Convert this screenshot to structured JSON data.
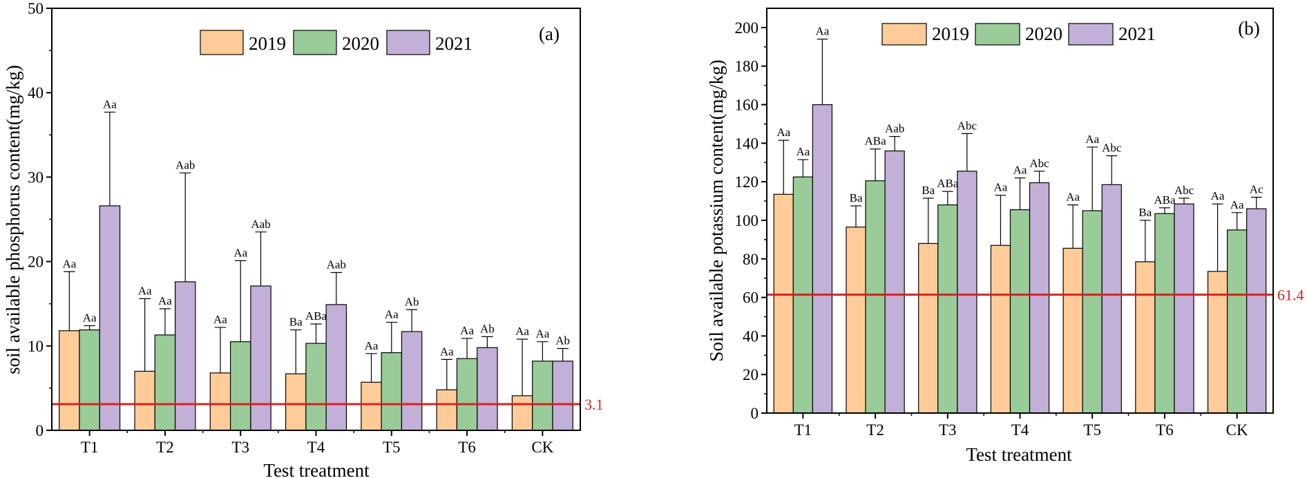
{
  "colors": {
    "series": [
      "#FFCC99",
      "#99CC99",
      "#C2B0D8"
    ],
    "reference_line": "#D92020",
    "axis": "#000000"
  },
  "chart_data": [
    {
      "type": "bar",
      "panel_label": "(a)",
      "title": "",
      "xlabel": "Test treatment",
      "ylabel": "soil available phosphorus content(mg/kg)",
      "categories": [
        "T1",
        "T2",
        "T3",
        "T4",
        "T5",
        "T6",
        "CK"
      ],
      "ylim": [
        0,
        50
      ],
      "yticks": [
        0,
        10,
        20,
        30,
        40,
        50
      ],
      "legend_position": "top-center",
      "series": [
        {
          "name": "2019",
          "values": [
            11.8,
            7.0,
            6.8,
            6.7,
            5.7,
            4.8,
            4.1
          ],
          "errors": [
            7.0,
            8.6,
            5.4,
            5.2,
            3.4,
            3.6,
            6.7
          ],
          "labels": [
            "Aa",
            "Aa",
            "Aa",
            "Ba",
            "Aa",
            "Aa",
            "Aa"
          ]
        },
        {
          "name": "2020",
          "values": [
            11.9,
            11.3,
            10.5,
            10.3,
            9.2,
            8.5,
            8.2
          ],
          "errors": [
            0.5,
            3.1,
            9.6,
            2.3,
            3.6,
            2.4,
            2.3
          ],
          "labels": [
            "Aa",
            "Aa",
            "Aa",
            "ABa",
            "Aa",
            "Aa",
            "Aa"
          ]
        },
        {
          "name": "2021",
          "values": [
            26.6,
            17.6,
            17.1,
            14.9,
            11.7,
            9.8,
            8.2
          ],
          "errors": [
            11.1,
            12.9,
            6.4,
            3.8,
            2.6,
            1.3,
            1.5
          ],
          "labels": [
            "Aa",
            "Aab",
            "Aab",
            "Aab",
            "Ab",
            "Ab",
            "Ab"
          ]
        }
      ],
      "reference_line": {
        "value": 3.1,
        "label": "3.1"
      }
    },
    {
      "type": "bar",
      "panel_label": "(b)",
      "title": "",
      "xlabel": "Test treatment",
      "ylabel": "Soil available potassium content(mg/kg)",
      "categories": [
        "T1",
        "T2",
        "T3",
        "T4",
        "T5",
        "T6",
        "CK"
      ],
      "ylim": [
        0,
        210
      ],
      "yticks": [
        0,
        20,
        40,
        60,
        80,
        100,
        120,
        140,
        160,
        180,
        200
      ],
      "legend_position": "top-center",
      "series": [
        {
          "name": "2019",
          "values": [
            113.5,
            96.5,
            88.0,
            87.0,
            85.5,
            78.5,
            73.5
          ],
          "errors": [
            28.0,
            11.0,
            23.5,
            26.0,
            22.5,
            21.5,
            35.0
          ],
          "labels": [
            "Aa",
            "Ba",
            "Ba",
            "Aa",
            "Aa",
            "Ba",
            "Aa"
          ]
        },
        {
          "name": "2020",
          "values": [
            122.5,
            120.5,
            108.0,
            105.5,
            105.0,
            103.5,
            95.0
          ],
          "errors": [
            9.0,
            16.5,
            7.0,
            16.5,
            33.0,
            3.0,
            9.0
          ],
          "labels": [
            "Aa",
            "ABa",
            "ABa",
            "Aa",
            "Aa",
            "ABa",
            "Aa"
          ]
        },
        {
          "name": "2021",
          "values": [
            160.0,
            136.0,
            125.5,
            119.5,
            118.5,
            108.5,
            106.0
          ],
          "errors": [
            34.0,
            7.5,
            19.5,
            6.0,
            15.0,
            3.0,
            6.0
          ],
          "labels": [
            "Aa",
            "Aab",
            "Abc",
            "Abc",
            "Abc",
            "Abc",
            "Ac"
          ]
        }
      ],
      "reference_line": {
        "value": 61.4,
        "label": "61.4"
      }
    }
  ]
}
